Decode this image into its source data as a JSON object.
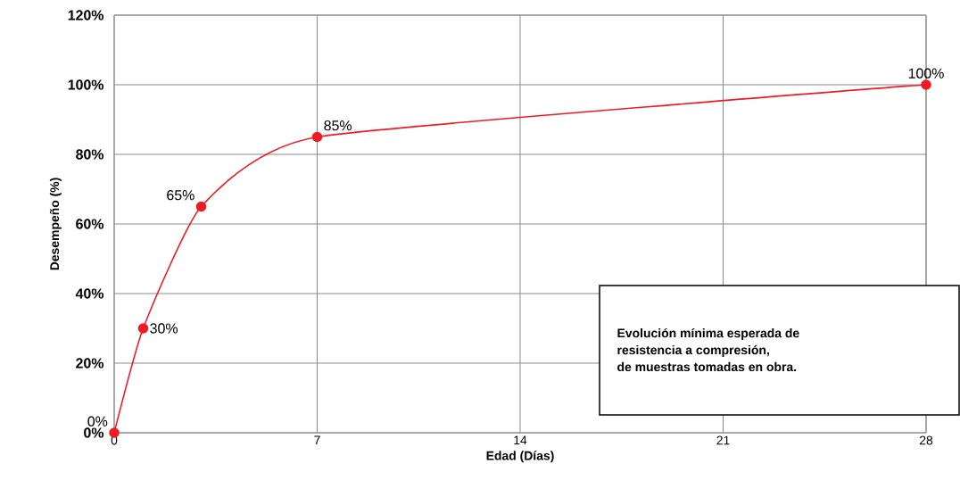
{
  "chart_data": {
    "type": "line",
    "xlabel": "Edad (Días)",
    "ylabel": "Desempeño (%)",
    "x": [
      0,
      1,
      3,
      7,
      28
    ],
    "series": [
      {
        "color": "#ed1c24",
        "values": [
          0,
          30,
          65,
          85,
          100
        ],
        "value_labels": [
          "0%",
          "30%",
          "65%",
          "85%",
          "100%"
        ]
      }
    ],
    "xlim": [
      0,
      28
    ],
    "xticks": [
      0,
      7,
      14,
      21,
      28
    ],
    "ylim": [
      0,
      120
    ],
    "yticks": [
      {
        "value": 0,
        "label": "0%"
      },
      {
        "value": 20,
        "label": "20%"
      },
      {
        "value": 40,
        "label": "40%"
      },
      {
        "value": 60,
        "label": "60%"
      },
      {
        "value": 80,
        "label": "80%"
      },
      {
        "value": 100,
        "label": "100%"
      },
      {
        "value": 120,
        "label": "120%"
      }
    ],
    "grid": true,
    "marker": "circle",
    "annotations": [
      "Evolución mínima esperada de",
      "resistencia a compresión,",
      "de muestras tomadas en obra."
    ]
  }
}
